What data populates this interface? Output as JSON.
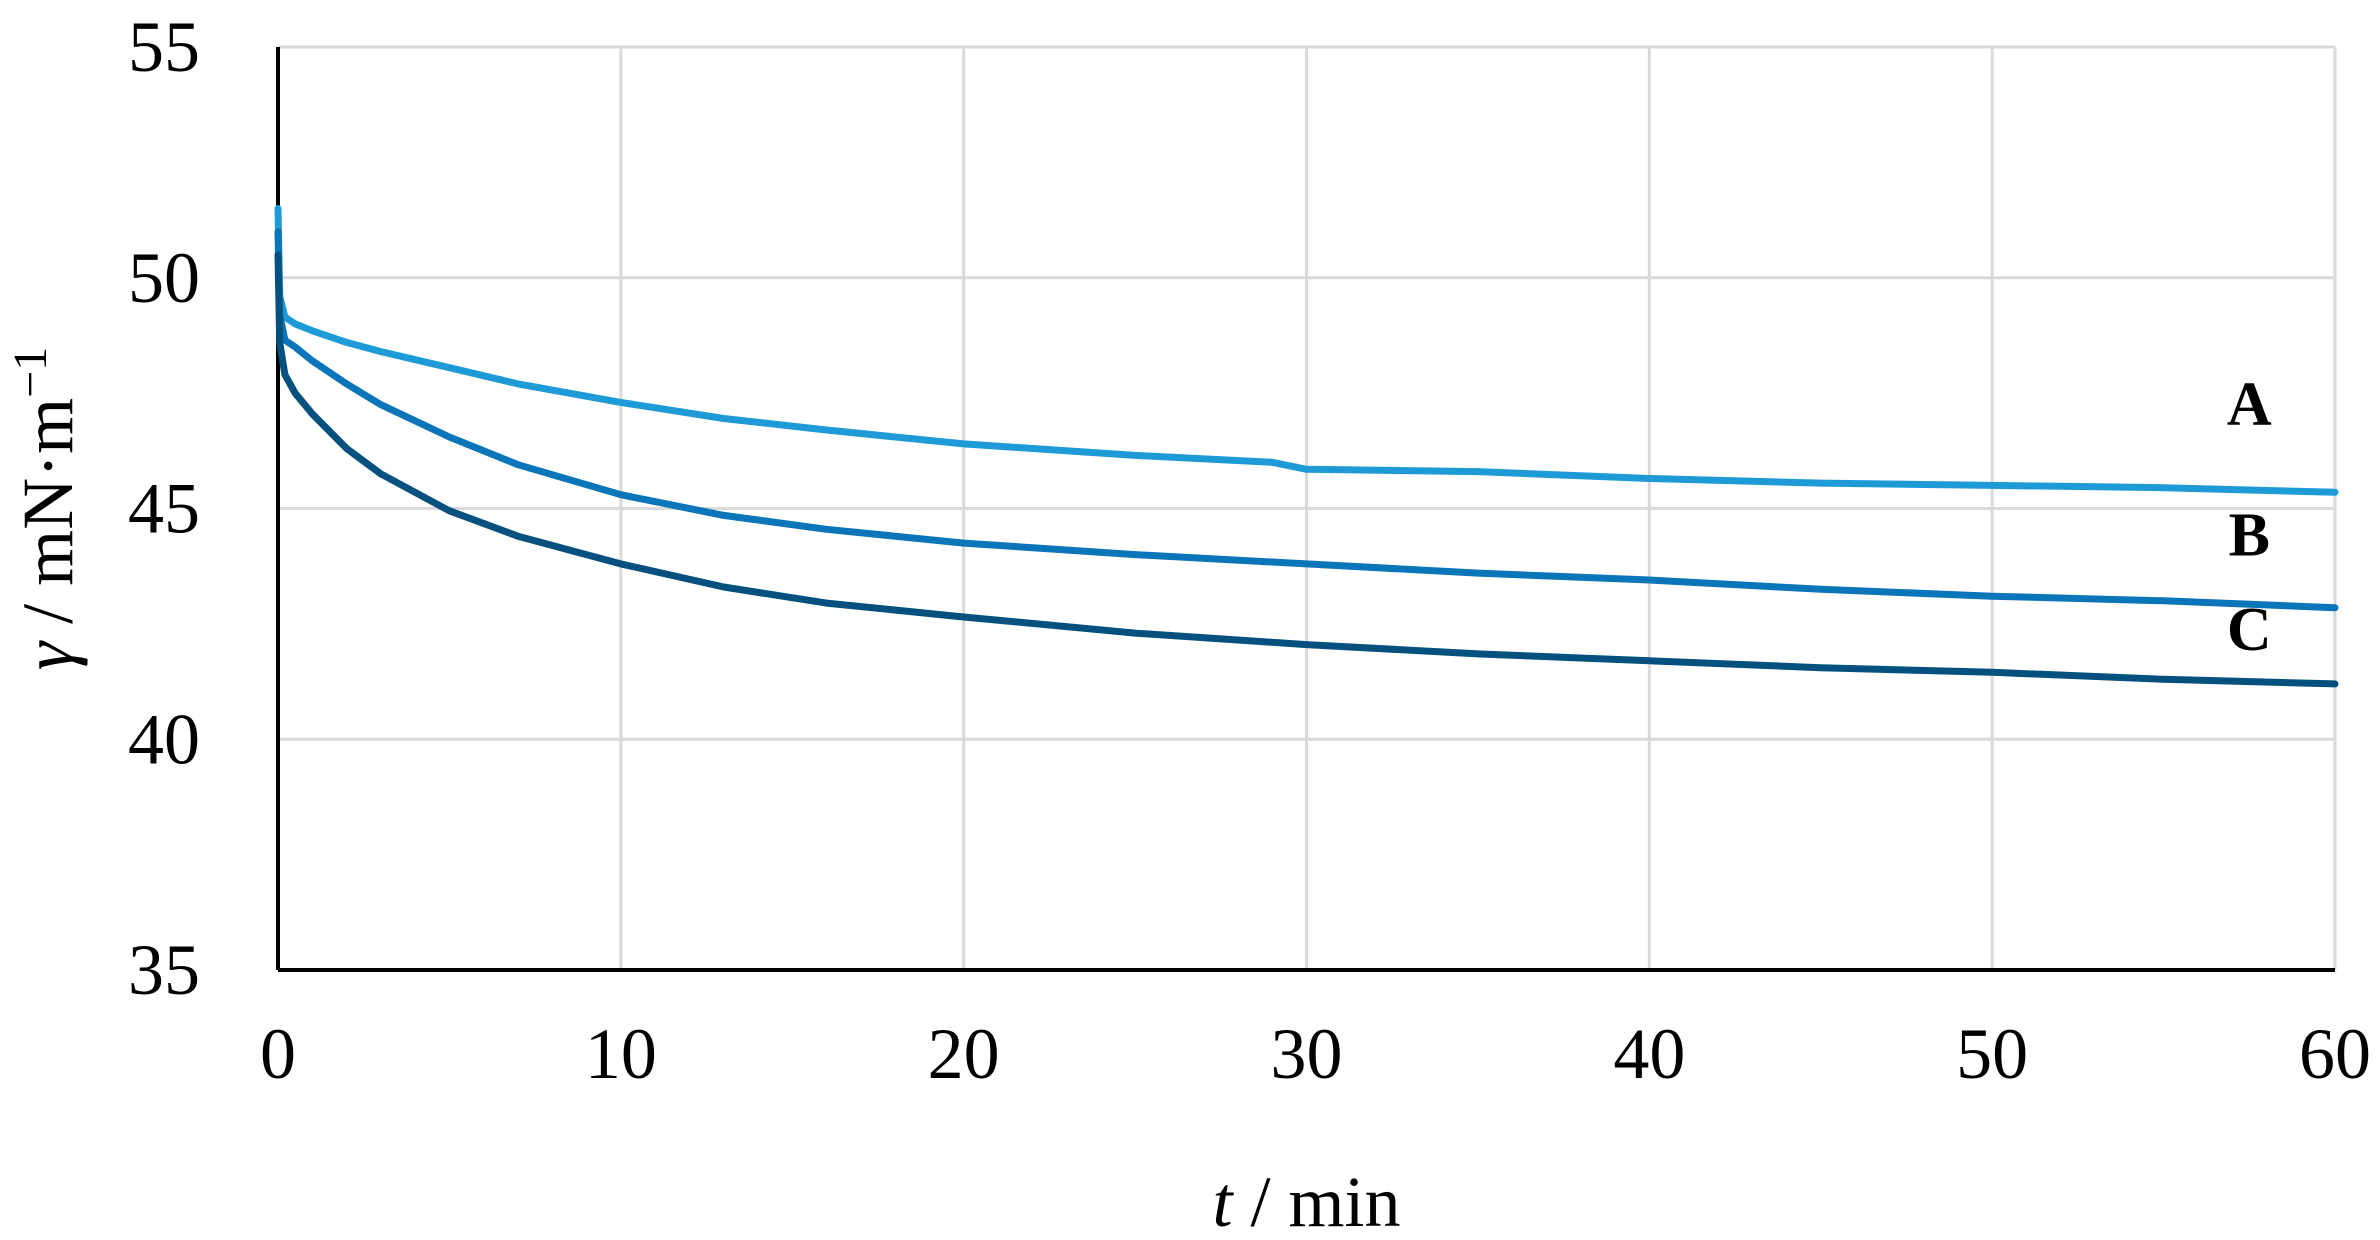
{
  "chart_data": {
    "type": "line",
    "xlabel": {
      "italic": "t",
      "rest": " / min"
    },
    "ylabel": {
      "italic": "γ",
      "rest": " / mN·m",
      "sup": "−1"
    },
    "xlim": [
      0,
      60
    ],
    "ylim": [
      35,
      55
    ],
    "x_ticks": [
      "0",
      "10",
      "20",
      "30",
      "40",
      "50",
      "60"
    ],
    "y_ticks": [
      "35",
      "40",
      "45",
      "50",
      "55"
    ],
    "grid": true,
    "series": [
      {
        "name": "A",
        "color": "#1e9ad6",
        "points": [
          [
            0,
            51.5
          ],
          [
            0.05,
            49.6
          ],
          [
            0.2,
            49.15
          ],
          [
            0.5,
            49.0
          ],
          [
            1,
            48.85
          ],
          [
            2,
            48.6
          ],
          [
            3,
            48.4
          ],
          [
            5,
            48.05
          ],
          [
            7,
            47.7
          ],
          [
            10,
            47.3
          ],
          [
            13,
            46.95
          ],
          [
            16,
            46.7
          ],
          [
            20,
            46.4
          ],
          [
            25,
            46.15
          ],
          [
            29,
            46.0
          ],
          [
            30,
            45.85
          ],
          [
            35,
            45.8
          ],
          [
            40,
            45.65
          ],
          [
            45,
            45.55
          ],
          [
            50,
            45.5
          ],
          [
            55,
            45.45
          ],
          [
            60,
            45.35
          ]
        ]
      },
      {
        "name": "B",
        "color": "#0a75b8",
        "points": [
          [
            0,
            51.0
          ],
          [
            0.05,
            49.2
          ],
          [
            0.2,
            48.65
          ],
          [
            0.5,
            48.5
          ],
          [
            1,
            48.2
          ],
          [
            2,
            47.7
          ],
          [
            3,
            47.25
          ],
          [
            5,
            46.55
          ],
          [
            7,
            45.95
          ],
          [
            10,
            45.3
          ],
          [
            13,
            44.85
          ],
          [
            16,
            44.55
          ],
          [
            20,
            44.25
          ],
          [
            25,
            44.0
          ],
          [
            30,
            43.8
          ],
          [
            35,
            43.6
          ],
          [
            40,
            43.45
          ],
          [
            45,
            43.25
          ],
          [
            50,
            43.1
          ],
          [
            55,
            43.0
          ],
          [
            60,
            42.85
          ]
        ]
      },
      {
        "name": "C",
        "color": "#04507f",
        "points": [
          [
            0,
            50.5
          ],
          [
            0.05,
            48.6
          ],
          [
            0.2,
            47.9
          ],
          [
            0.5,
            47.5
          ],
          [
            1,
            47.05
          ],
          [
            2,
            46.3
          ],
          [
            3,
            45.75
          ],
          [
            5,
            44.95
          ],
          [
            7,
            44.4
          ],
          [
            10,
            43.8
          ],
          [
            13,
            43.3
          ],
          [
            16,
            42.95
          ],
          [
            20,
            42.65
          ],
          [
            25,
            42.3
          ],
          [
            30,
            42.05
          ],
          [
            35,
            41.85
          ],
          [
            40,
            41.7
          ],
          [
            45,
            41.55
          ],
          [
            50,
            41.45
          ],
          [
            55,
            41.3
          ],
          [
            60,
            41.2
          ]
        ]
      }
    ]
  }
}
